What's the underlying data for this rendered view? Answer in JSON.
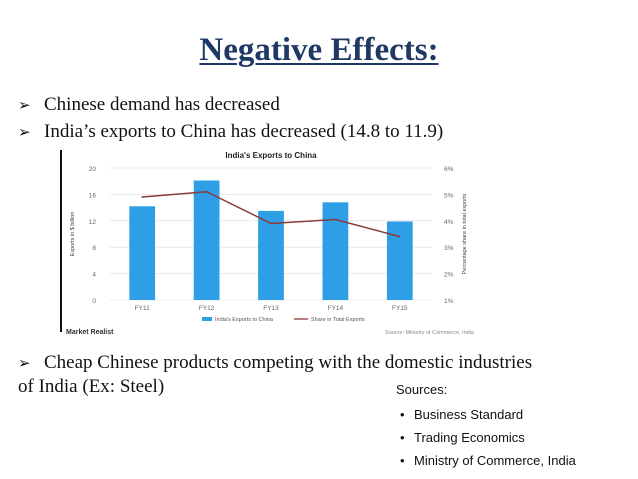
{
  "slide": {
    "title": "Negative Effects:",
    "bullets": [
      "Chinese demand has decreased",
      "India’s exports to China has decreased (14.8 to 11.9)",
      "Cheap Chinese products competing with the domestic industries"
    ],
    "continuation": "of India (Ex: Steel)",
    "sources": {
      "heading": "Sources:",
      "items": [
        "Business Standard",
        "Trading Economics",
        "Ministry of Commerce, India"
      ]
    },
    "colors": {
      "title": "#1f3864",
      "bars": "#2e9fe6",
      "line": "#8b3a3a"
    }
  },
  "chart_data": {
    "type": "bar",
    "title": "India's Exports to China",
    "categories": [
      "FY11",
      "FY12",
      "FY13",
      "FY14",
      "FY15"
    ],
    "series": [
      {
        "name": "India's Exports to China",
        "type": "bar",
        "values": [
          14.2,
          18.1,
          13.5,
          14.8,
          11.9
        ]
      },
      {
        "name": "Share in Total Exports",
        "type": "line",
        "values": [
          4.9,
          5.1,
          3.9,
          4.05,
          3.4
        ]
      }
    ],
    "ylabel": "Exports in $ billion",
    "y2label": "Percentage share in total exports",
    "ylim": [
      0,
      20
    ],
    "y2lim": [
      1,
      6
    ],
    "yticks": [
      "0",
      "4",
      "8",
      "12",
      "16",
      "20"
    ],
    "y2ticks": [
      "1%",
      "2%",
      "3%",
      "4%",
      "5%",
      "6%"
    ],
    "branding": "Market Realist",
    "source": "Source: Ministry of Commerce, India",
    "legend": "bottom"
  }
}
